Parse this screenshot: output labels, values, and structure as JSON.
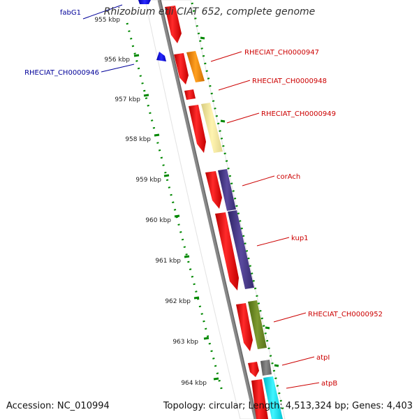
{
  "title": "Rhizobium etli CIAT 652, complete genome",
  "footer": {
    "accession_label": "Accession:",
    "accession": "NC_010994",
    "topology_label": "Topology:",
    "topology": "circular",
    "length_label": "Length:",
    "length": "4,513,324 bp",
    "genes_label": "Genes:",
    "genes": "4,403"
  },
  "scale_ticks": [
    "955 kbp",
    "956 kbp",
    "957 kbp",
    "958 kbp",
    "959 kbp",
    "960 kbp",
    "961 kbp",
    "962 kbp",
    "963 kbp",
    "964 kbp"
  ],
  "gene_labels": {
    "fabG1": "fabG1",
    "ch946": "RHECIAT_CH0000946",
    "ch947": "RHECIAT_CH0000947",
    "ch948": "RHECIAT_CH0000948",
    "ch949": "RHECIAT_CH0000949",
    "corAch": "corAch",
    "kup1": "kup1",
    "ch952": "RHECIAT_CH0000952",
    "atpI": "atpI",
    "atpB": "atpB"
  },
  "colors": {
    "forward_label": "#cc0000",
    "reverse_label": "#000099",
    "cds": "#ff0000",
    "backbone": "#888888",
    "tick": "#008800"
  }
}
